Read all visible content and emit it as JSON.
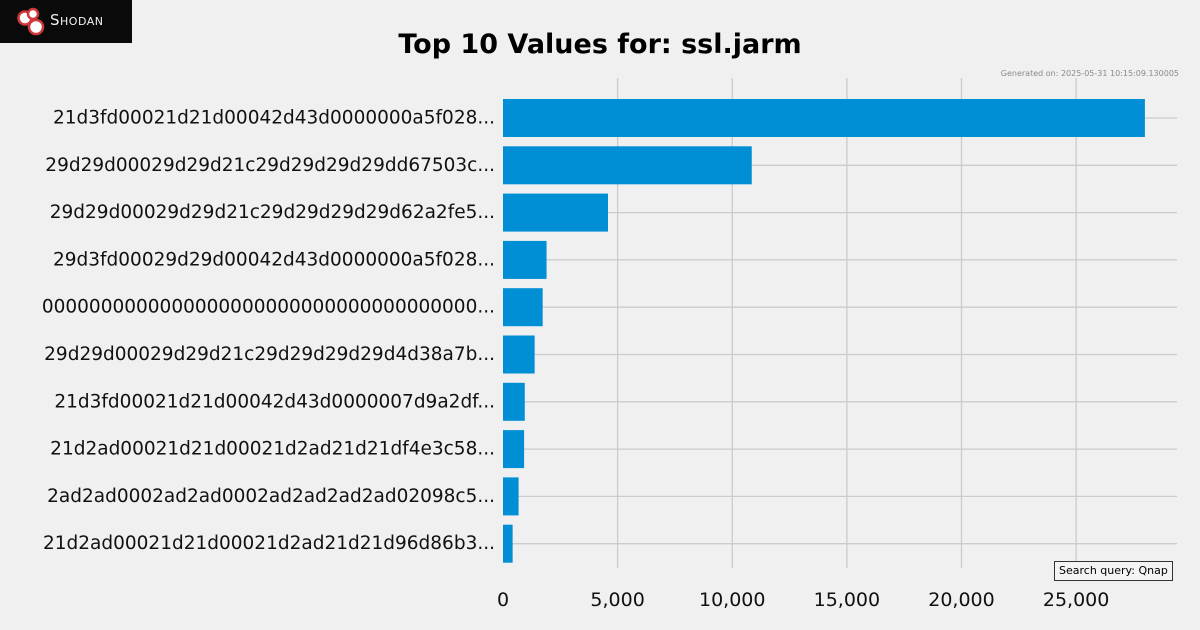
{
  "logo": {
    "text": "Shodan"
  },
  "header": {
    "title": "Top 10 Values for: ssl.jarm",
    "generated": "Generated on: 2025-05-31 10:15:09.130005"
  },
  "query_box": {
    "text": "Search query: Qnap"
  },
  "colors": {
    "background": "#f0f0f0",
    "bar": "#008fd5",
    "grid": "#cbcbcb"
  },
  "chart_data": {
    "type": "bar",
    "orientation": "horizontal",
    "title": "Top 10 Values for: ssl.jarm",
    "xlabel": "",
    "ylabel": "",
    "xlim": [
      0,
      29400
    ],
    "xticks": [
      0,
      5000,
      10000,
      15000,
      20000,
      25000
    ],
    "xtick_labels": [
      "0",
      "5,000",
      "10,000",
      "15,000",
      "20,000",
      "25,000"
    ],
    "grid": true,
    "categories": [
      "21d3fd00021d21d00042d43d0000000a5f028...",
      "29d29d00029d29d21c29d29d29d29dd67503c...",
      "29d29d00029d29d21c29d29d29d29d62a2fe5...",
      "29d3fd00029d29d00042d43d0000000a5f028...",
      "0000000000000000000000000000000000000...",
      "29d29d00029d29d21c29d29d29d29d4d38a7b...",
      "21d3fd00021d21d00042d43d0000007d9a2df...",
      "21d2ad00021d21d00021d2ad21d21df4e3c58...",
      "2ad2ad0002ad2ad0002ad2ad2ad2ad02098c5...",
      "21d2ad00021d21d00021d2ad21d21d96d86b3..."
    ],
    "values": [
      28000,
      10850,
      4580,
      1900,
      1730,
      1380,
      950,
      920,
      680,
      420
    ]
  }
}
